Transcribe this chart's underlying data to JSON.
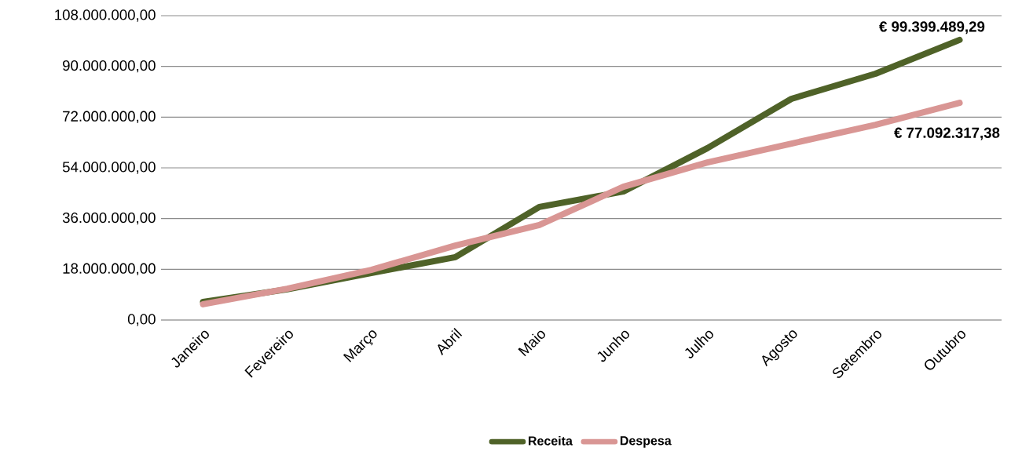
{
  "chart_data": {
    "type": "line",
    "categories": [
      "Janeiro",
      "Fevereiro",
      "Março",
      "Abril",
      "Maio",
      "Junho",
      "Julho",
      "Agosto",
      "Setembro",
      "Outubro"
    ],
    "series": [
      {
        "name": "Receita",
        "color": "#4f6228",
        "values": [
          6400000,
          10900000,
          16700000,
          22300000,
          40100000,
          45600000,
          61000000,
          78500000,
          87400000,
          99399489.29
        ]
      },
      {
        "name": "Despesa",
        "color": "#d99694",
        "values": [
          5600000,
          11100000,
          17800000,
          26400000,
          33700000,
          47300000,
          55900000,
          62600000,
          69300000,
          77092317.38
        ]
      }
    ],
    "ylim": [
      0,
      108000000
    ],
    "yticks": [
      {
        "value": 0,
        "label": "0,00"
      },
      {
        "value": 18000000,
        "label": "18.000.000,00"
      },
      {
        "value": 36000000,
        "label": "36.000.000,00"
      },
      {
        "value": 54000000,
        "label": "54.000.000,00"
      },
      {
        "value": 72000000,
        "label": "72.000.000,00"
      },
      {
        "value": 90000000,
        "label": "90.000.000,00"
      },
      {
        "value": 108000000,
        "label": "108.000.000,00"
      }
    ],
    "grid": "y",
    "legend": "bottom",
    "marker": "none",
    "line_style": "solid",
    "annotations": [
      {
        "text": "€ 99.399.489,29",
        "x": "Outubro",
        "y": 99399489.29
      },
      {
        "text": "€ 77.092.317,38",
        "x": "Outubro",
        "y": 77092317.38
      }
    ]
  }
}
